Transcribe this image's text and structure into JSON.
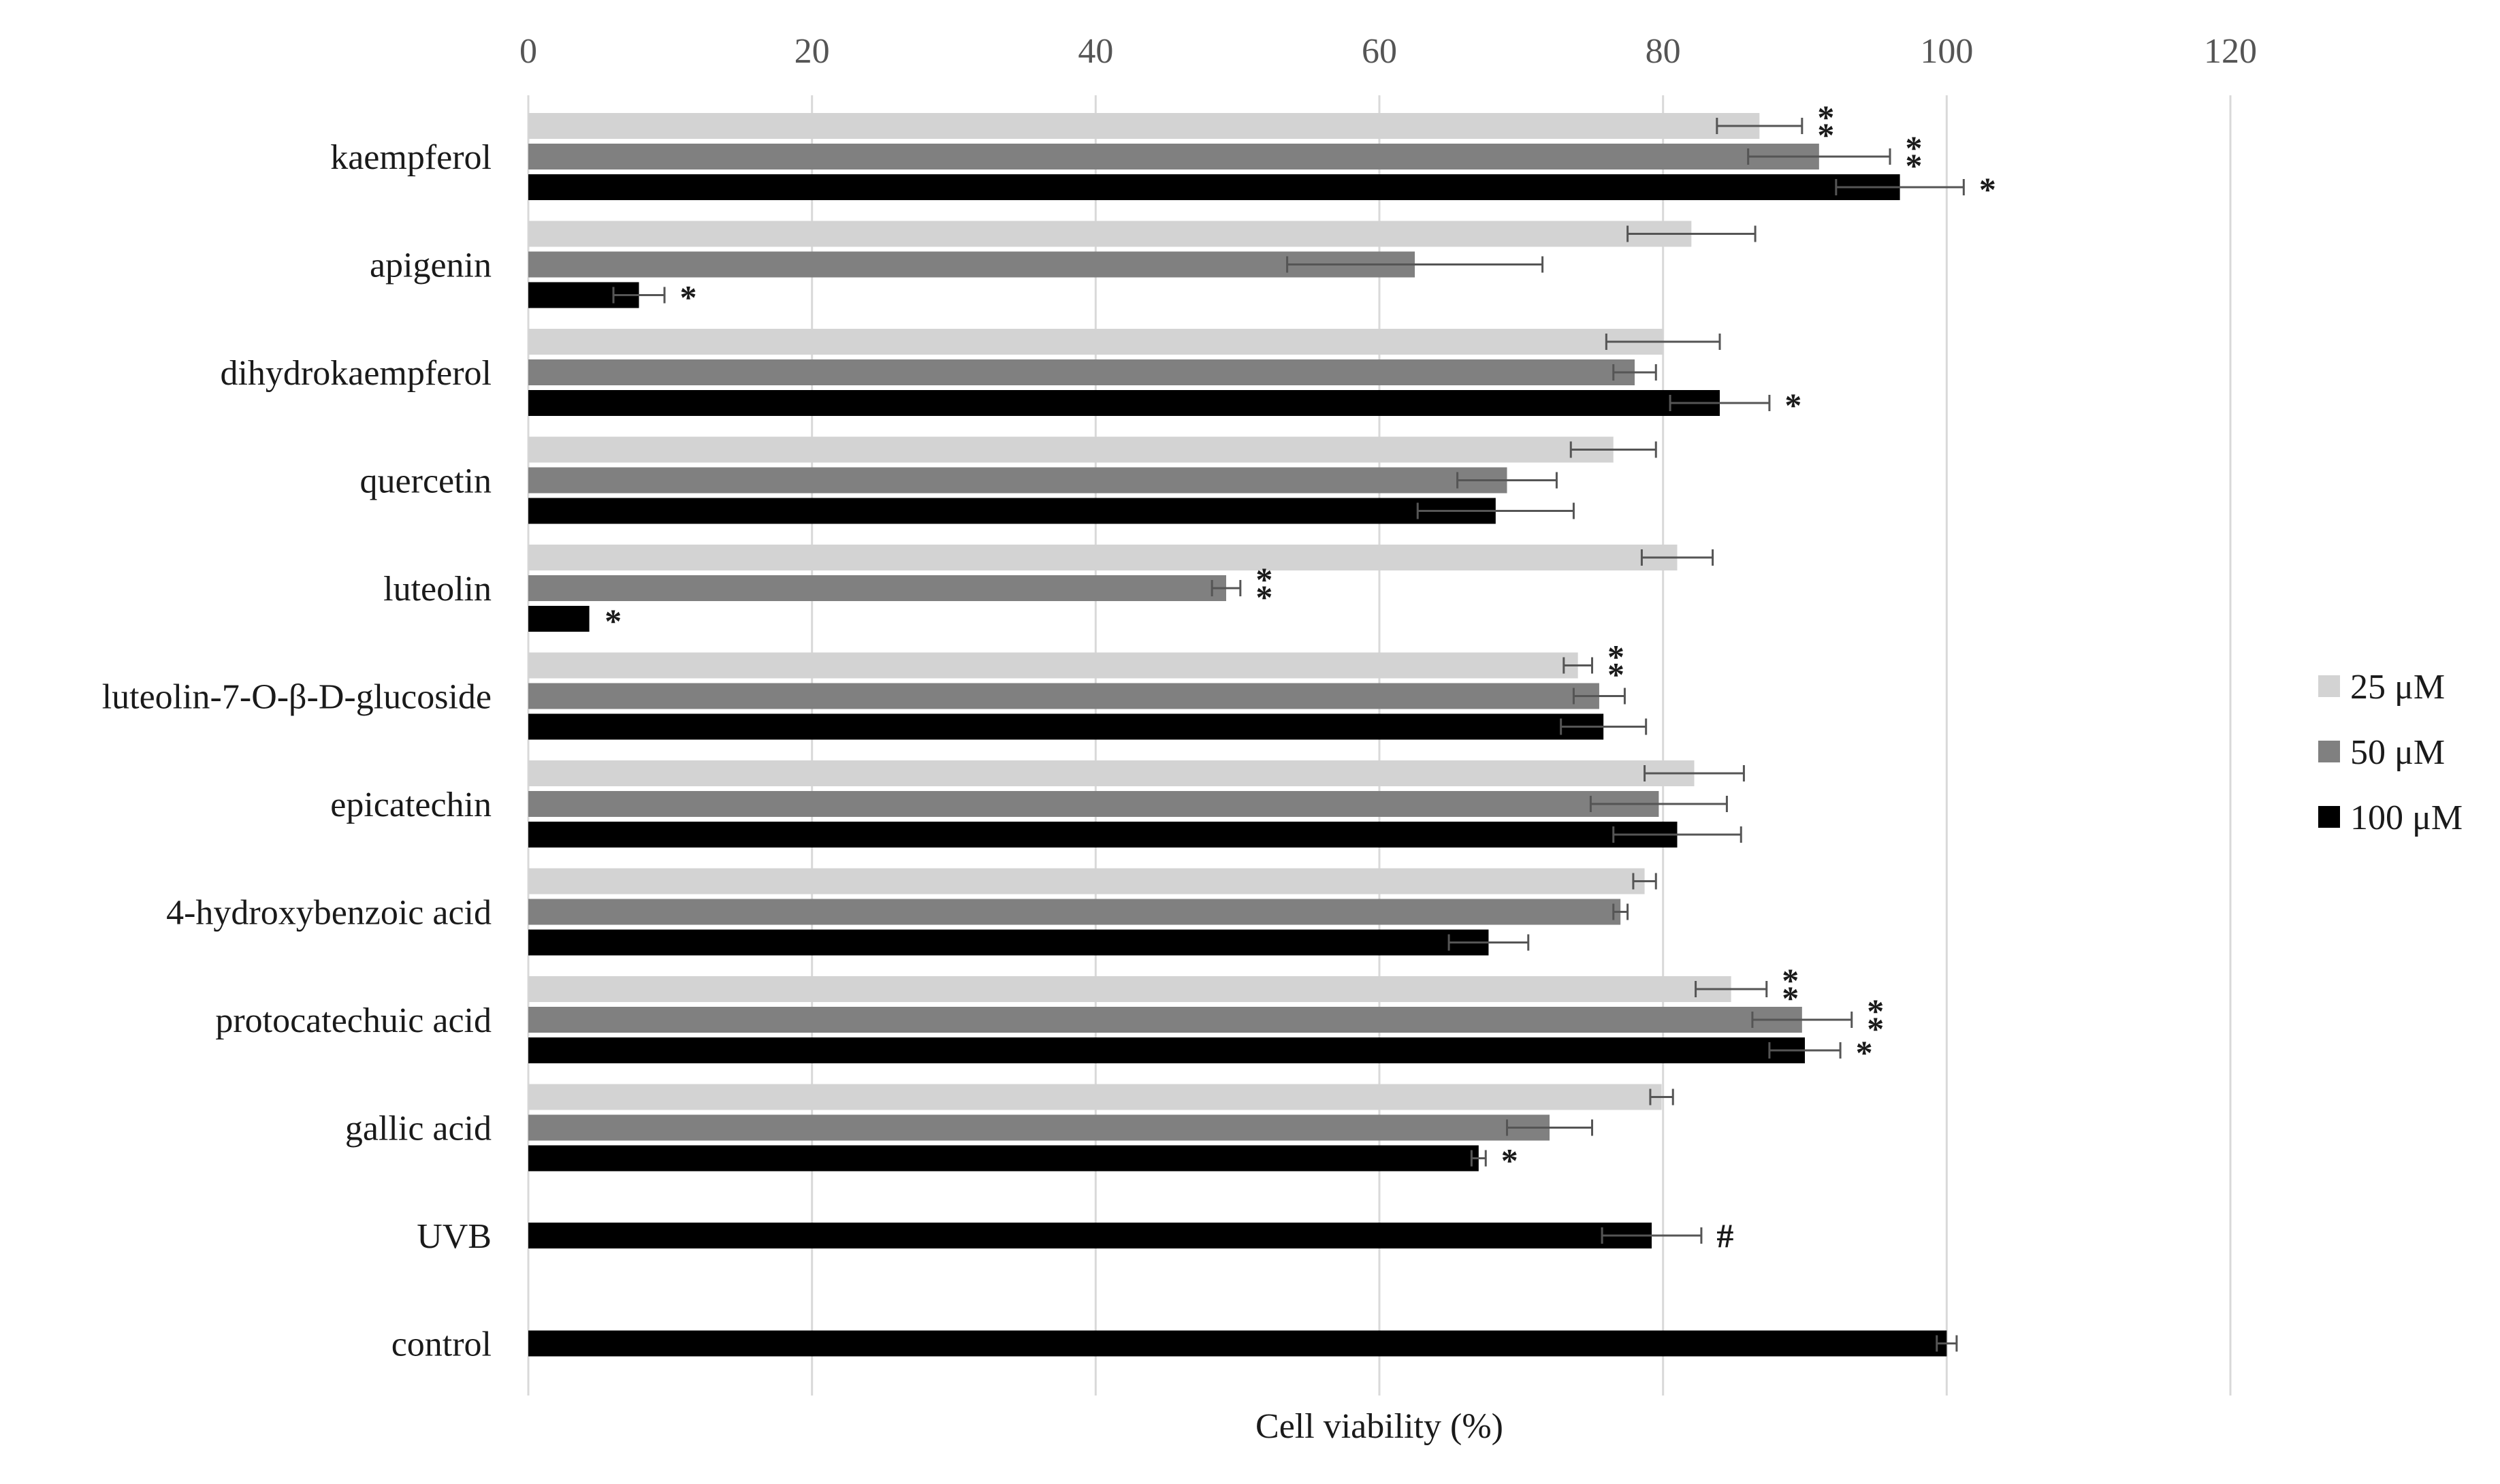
{
  "chart_data": {
    "type": "bar",
    "orientation": "horizontal",
    "xlabel": "Cell viability (%)",
    "xlim": [
      0,
      120
    ],
    "xticks": [
      "0",
      "20",
      "40",
      "60",
      "80",
      "100",
      "120"
    ],
    "grid": true,
    "legend_position": "right",
    "categories": [
      "kaempferol",
      "apigenin",
      "dihydrokaempferol",
      "quercetin",
      "luteolin",
      "luteolin-7-O-β-D-glucoside",
      "epicatechin",
      "4-hydroxybenzoic acid",
      "protocatechuic acid",
      "gallic acid",
      "UVB",
      "control"
    ],
    "series": [
      {
        "name": "25 μM",
        "color": "#d3d3d3",
        "values": [
          86.8,
          82,
          80,
          76.5,
          81,
          74,
          82.2,
          78.7,
          84.8,
          79.9,
          null,
          null
        ],
        "errors": [
          3,
          4.5,
          4,
          3,
          2.5,
          1,
          3.5,
          0.8,
          2.5,
          0.8,
          null,
          null
        ],
        "markers": [
          "**",
          "",
          "",
          "",
          "",
          "**",
          "",
          "",
          "**",
          "",
          "",
          ""
        ]
      },
      {
        "name": "50 μM",
        "color": "#808080",
        "values": [
          91,
          62.5,
          78,
          69,
          49.2,
          75.5,
          79.7,
          77,
          89.8,
          72,
          null,
          null
        ],
        "errors": [
          5,
          9,
          1.5,
          3.5,
          1,
          1.8,
          4.8,
          0.5,
          3.5,
          3,
          null,
          null
        ],
        "markers": [
          "**",
          "",
          "",
          "",
          "**",
          "",
          "",
          "",
          "**",
          "",
          "",
          ""
        ]
      },
      {
        "name": "100 μM",
        "color": "#000000",
        "values": [
          96.7,
          7.8,
          84,
          68.2,
          4.3,
          75.8,
          81,
          67.7,
          90,
          67,
          79.2,
          100
        ],
        "errors": [
          4.5,
          1.8,
          3.5,
          5.5,
          0,
          3,
          4.5,
          2.8,
          2.5,
          0.5,
          3.5,
          0.7
        ],
        "markers": [
          "*",
          "*",
          "*",
          "",
          "*",
          "",
          "",
          "",
          "*",
          "*",
          "#",
          ""
        ]
      }
    ]
  }
}
